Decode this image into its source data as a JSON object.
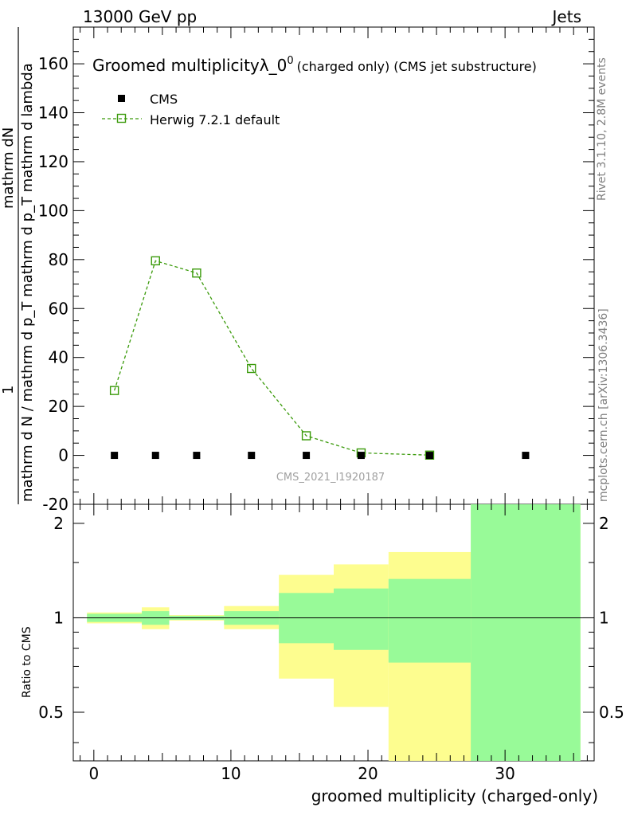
{
  "header": {
    "left": "13000 GeV pp",
    "right": "Jets"
  },
  "side_labels": {
    "rivet": "Rivet 3.1.10,  2.8M events",
    "mcplots": "mcplots.cern.ch [arXiv:1306.3436]"
  },
  "watermark": "CMS_2021_I1920187",
  "chart_data": [
    {
      "type": "scatter",
      "title_main": "Groomed multiplicity",
      "title_lambda": "λ_0",
      "title_sup": "0",
      "title_suffix": "(charged only) (CMS jet substructure)",
      "ylabel_numerator": "mathrm dN",
      "ylabel_denominator": "mathrm d N / mathrm d p_T mathrm d p_T mathrm d lambda",
      "ylabel_prefix": "1",
      "ylim": [
        -20,
        175
      ],
      "yticks": [
        -20,
        0,
        20,
        40,
        60,
        80,
        100,
        120,
        140,
        160
      ],
      "xlim": [
        -1.5,
        36.5
      ],
      "series": [
        {
          "name": "CMS",
          "marker": "filled-square",
          "color": "#000000",
          "x": [
            1.5,
            4.5,
            7.5,
            11.5,
            15.5,
            19.5,
            24.5,
            31.5
          ],
          "y": [
            0,
            0,
            0,
            0,
            0,
            0,
            0,
            0
          ]
        },
        {
          "name": "Herwig 7.2.1 default",
          "marker": "open-square",
          "line": "dashed",
          "color": "#3a9a0a",
          "x": [
            1.5,
            4.5,
            7.5,
            11.5,
            15.5,
            19.5,
            24.5
          ],
          "y": [
            26.5,
            79.5,
            74.5,
            35.5,
            8.0,
            1.0,
            0.1
          ]
        }
      ]
    },
    {
      "type": "area",
      "ylabel": "Ratio to CMS",
      "xlabel": "groomed multiplicity (charged-only)",
      "ylim": [
        0.35,
        2.3
      ],
      "yscale": "log",
      "yticks": [
        {
          "v": 0.5,
          "label": "0.5"
        },
        {
          "v": 1,
          "label": "1"
        },
        {
          "v": 2,
          "label": "2"
        }
      ],
      "xlim": [
        -1.5,
        36.5
      ],
      "xticks": [
        {
          "v": 0,
          "label": "0"
        },
        {
          "v": 10,
          "label": "10"
        },
        {
          "v": 20,
          "label": "20"
        },
        {
          "v": 30,
          "label": "30"
        }
      ],
      "band_colors": {
        "outer": "#fdfd8f",
        "inner": "#98fa98"
      },
      "bins": [
        {
          "x0": -0.5,
          "x1": 3.5,
          "outer": [
            0.96,
            1.04
          ],
          "inner": [
            0.97,
            1.03
          ]
        },
        {
          "x0": 3.5,
          "x1": 5.5,
          "outer": [
            0.92,
            1.08
          ],
          "inner": [
            0.95,
            1.05
          ]
        },
        {
          "x0": 5.5,
          "x1": 9.5,
          "outer": [
            0.98,
            1.02
          ],
          "inner": [
            0.985,
            1.015
          ]
        },
        {
          "x0": 9.5,
          "x1": 13.5,
          "outer": [
            0.92,
            1.09
          ],
          "inner": [
            0.95,
            1.05
          ]
        },
        {
          "x0": 13.5,
          "x1": 17.5,
          "outer": [
            0.64,
            1.37
          ],
          "inner": [
            0.83,
            1.2
          ]
        },
        {
          "x0": 17.5,
          "x1": 21.5,
          "outer": [
            0.52,
            1.48
          ],
          "inner": [
            0.79,
            1.24
          ]
        },
        {
          "x0": 21.5,
          "x1": 27.5,
          "outer": [
            0.35,
            1.62
          ],
          "inner": [
            0.72,
            1.33
          ]
        },
        {
          "x0": 27.5,
          "x1": 35.5,
          "outer": [
            0.35,
            2.3
          ],
          "inner": [
            0.35,
            2.3
          ]
        }
      ]
    }
  ]
}
